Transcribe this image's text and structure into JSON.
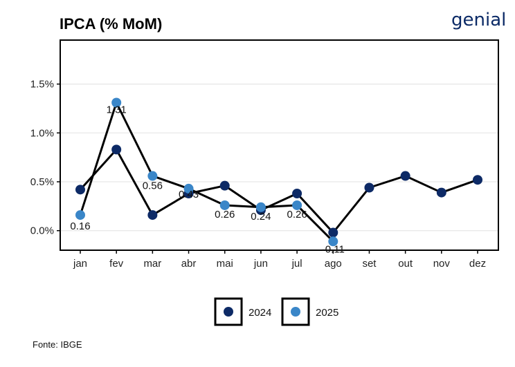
{
  "header": {
    "title": "IPCA (% MoM)",
    "logo_text": "genial"
  },
  "footer": {
    "source": "Fonte: IBGE"
  },
  "chart_data": {
    "type": "line",
    "title": "IPCA (% MoM)",
    "xlabel": "",
    "ylabel": "",
    "categories": [
      "jan",
      "fev",
      "mar",
      "abr",
      "mai",
      "jun",
      "jul",
      "ago",
      "set",
      "out",
      "nov",
      "dez"
    ],
    "ylim": [
      -0.2,
      1.95
    ],
    "yticks": [
      0.0,
      0.5,
      1.0,
      1.5
    ],
    "ytick_labels": [
      "0.0%",
      "0.5%",
      "1.0%",
      "1.5%"
    ],
    "grid": "horizontal",
    "legend_position": "bottom-center",
    "series": [
      {
        "name": "2024",
        "color": "#0d2a66",
        "values": [
          0.42,
          0.83,
          0.16,
          0.38,
          0.46,
          0.21,
          0.38,
          -0.02,
          0.44,
          0.56,
          0.39,
          0.52
        ],
        "labels": null
      },
      {
        "name": "2025",
        "color": "#3a86c8",
        "values": [
          0.16,
          1.31,
          0.56,
          0.43,
          0.26,
          0.24,
          0.26,
          -0.11,
          null,
          null,
          null,
          null
        ],
        "labels": [
          "0.16",
          "1.31",
          "0.56",
          "0.43",
          "0.26",
          "0.24",
          "0.26",
          "-0.11",
          null,
          null,
          null,
          null
        ]
      }
    ]
  }
}
